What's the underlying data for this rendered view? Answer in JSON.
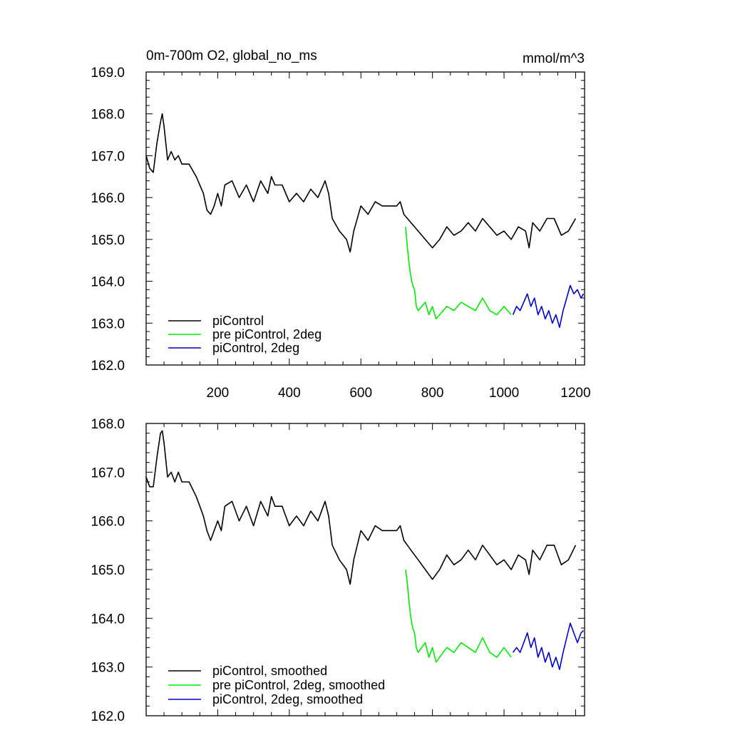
{
  "chart_data": [
    {
      "type": "line",
      "title": "0m-700m O2, global_no_ms",
      "units": "mmol/m^3",
      "xlim": [
        0,
        1225
      ],
      "ylim": [
        162.0,
        169.0
      ],
      "x_ticks": [
        200,
        400,
        600,
        800,
        1000,
        1200
      ],
      "y_ticks": [
        "162.0",
        "163.0",
        "164.0",
        "165.0",
        "166.0",
        "167.0",
        "168.0",
        "169.0"
      ],
      "legend_position": "bottom-left",
      "series": [
        {
          "name": "piControl",
          "color": "#000000",
          "x": [
            0,
            10,
            20,
            30,
            40,
            45,
            50,
            60,
            70,
            80,
            90,
            100,
            120,
            140,
            160,
            170,
            180,
            190,
            200,
            210,
            220,
            240,
            250,
            260,
            280,
            300,
            320,
            340,
            350,
            360,
            380,
            400,
            420,
            440,
            460,
            480,
            500,
            510,
            520,
            540,
            560,
            570,
            580,
            600,
            620,
            640,
            660,
            680,
            700,
            710,
            720,
            740,
            760,
            780,
            800,
            820,
            840,
            860,
            880,
            900,
            920,
            940,
            960,
            980,
            1000,
            1020,
            1040,
            1060,
            1070,
            1080,
            1100,
            1120,
            1140,
            1160,
            1180,
            1200
          ],
          "y": [
            167.0,
            166.7,
            166.6,
            167.3,
            167.8,
            168.0,
            167.7,
            166.9,
            167.1,
            166.9,
            167.0,
            166.8,
            166.8,
            166.5,
            166.1,
            165.7,
            165.6,
            165.8,
            166.1,
            165.8,
            166.3,
            166.4,
            166.2,
            166.0,
            166.3,
            165.9,
            166.4,
            166.1,
            166.5,
            166.3,
            166.3,
            165.9,
            166.1,
            165.9,
            166.2,
            166.0,
            166.4,
            166.1,
            165.5,
            165.2,
            165.0,
            164.7,
            165.2,
            165.8,
            165.6,
            165.9,
            165.8,
            165.8,
            165.8,
            165.9,
            165.6,
            165.4,
            165.2,
            165.0,
            164.8,
            165.0,
            165.3,
            165.1,
            165.2,
            165.4,
            165.2,
            165.5,
            165.3,
            165.1,
            165.2,
            165.0,
            165.3,
            165.2,
            164.8,
            165.4,
            165.2,
            165.5,
            165.5,
            165.1,
            165.2,
            165.5
          ]
        },
        {
          "name": "pre piControl, 2deg",
          "color": "#00ee00",
          "x": [
            725,
            730,
            735,
            740,
            745,
            750,
            755,
            760,
            770,
            780,
            790,
            800,
            810,
            820,
            840,
            860,
            880,
            900,
            920,
            940,
            960,
            980,
            1000,
            1020
          ],
          "y": [
            165.3,
            164.8,
            164.4,
            164.1,
            163.9,
            163.8,
            163.4,
            163.3,
            163.4,
            163.5,
            163.2,
            163.4,
            163.1,
            163.2,
            163.4,
            163.3,
            163.5,
            163.4,
            163.3,
            163.6,
            163.3,
            163.2,
            163.4,
            163.2
          ]
        },
        {
          "name": "piControl, 2deg",
          "color": "#0000cc",
          "x": [
            1025,
            1035,
            1045,
            1055,
            1065,
            1075,
            1085,
            1095,
            1105,
            1115,
            1125,
            1135,
            1145,
            1155,
            1165,
            1175,
            1185,
            1195,
            1205,
            1215,
            1222
          ],
          "y": [
            163.2,
            163.4,
            163.3,
            163.5,
            163.7,
            163.4,
            163.6,
            163.2,
            163.4,
            163.1,
            163.3,
            163.0,
            163.2,
            162.9,
            163.3,
            163.6,
            163.9,
            163.7,
            163.8,
            163.6,
            163.7
          ]
        }
      ]
    },
    {
      "type": "line",
      "xlim": [
        0,
        1225
      ],
      "ylim": [
        162.0,
        168.0
      ],
      "y_ticks": [
        "162.0",
        "163.0",
        "164.0",
        "165.0",
        "166.0",
        "167.0",
        "168.0"
      ],
      "legend_position": "bottom-left",
      "series": [
        {
          "name": "piControl, smoothed",
          "color": "#000000",
          "x": [
            0,
            10,
            20,
            30,
            40,
            45,
            50,
            60,
            70,
            80,
            90,
            100,
            120,
            140,
            160,
            170,
            180,
            190,
            200,
            210,
            220,
            240,
            250,
            260,
            280,
            300,
            320,
            340,
            350,
            360,
            380,
            400,
            420,
            440,
            460,
            480,
            500,
            510,
            520,
            540,
            560,
            570,
            580,
            600,
            620,
            640,
            660,
            680,
            700,
            710,
            720,
            740,
            760,
            780,
            800,
            820,
            840,
            860,
            880,
            900,
            920,
            940,
            960,
            980,
            1000,
            1020,
            1040,
            1060,
            1070,
            1080,
            1100,
            1120,
            1140,
            1160,
            1180,
            1200
          ],
          "y": [
            166.9,
            166.7,
            166.7,
            167.3,
            167.8,
            167.85,
            167.6,
            166.9,
            167.0,
            166.8,
            167.0,
            166.8,
            166.8,
            166.5,
            166.1,
            165.8,
            165.6,
            165.8,
            166.0,
            165.8,
            166.3,
            166.4,
            166.2,
            166.0,
            166.3,
            165.9,
            166.4,
            166.1,
            166.5,
            166.3,
            166.3,
            165.9,
            166.1,
            165.9,
            166.2,
            166.0,
            166.4,
            166.1,
            165.5,
            165.2,
            165.0,
            164.7,
            165.2,
            165.8,
            165.6,
            165.9,
            165.8,
            165.8,
            165.8,
            165.9,
            165.6,
            165.4,
            165.2,
            165.0,
            164.8,
            165.0,
            165.3,
            165.1,
            165.2,
            165.4,
            165.2,
            165.5,
            165.3,
            165.1,
            165.2,
            165.0,
            165.3,
            165.2,
            164.9,
            165.4,
            165.2,
            165.5,
            165.5,
            165.1,
            165.2,
            165.5
          ]
        },
        {
          "name": "pre piControl, 2deg, smoothed",
          "color": "#00ee00",
          "x": [
            725,
            730,
            735,
            740,
            745,
            750,
            755,
            760,
            770,
            780,
            790,
            800,
            810,
            820,
            840,
            860,
            880,
            900,
            920,
            940,
            960,
            980,
            1000,
            1020
          ],
          "y": [
            165.0,
            164.7,
            164.3,
            164.0,
            163.8,
            163.7,
            163.4,
            163.3,
            163.4,
            163.5,
            163.2,
            163.4,
            163.1,
            163.2,
            163.4,
            163.3,
            163.5,
            163.4,
            163.3,
            163.6,
            163.3,
            163.2,
            163.4,
            163.2
          ]
        },
        {
          "name": "piControl, 2deg, smoothed",
          "color": "#0000cc",
          "x": [
            1025,
            1035,
            1045,
            1055,
            1065,
            1075,
            1085,
            1095,
            1105,
            1115,
            1125,
            1135,
            1145,
            1155,
            1165,
            1175,
            1185,
            1195,
            1205,
            1215,
            1222
          ],
          "y": [
            163.3,
            163.4,
            163.3,
            163.5,
            163.7,
            163.4,
            163.6,
            163.2,
            163.4,
            163.1,
            163.3,
            163.0,
            163.2,
            162.95,
            163.3,
            163.6,
            163.9,
            163.7,
            163.5,
            163.7,
            163.75
          ]
        }
      ]
    }
  ]
}
